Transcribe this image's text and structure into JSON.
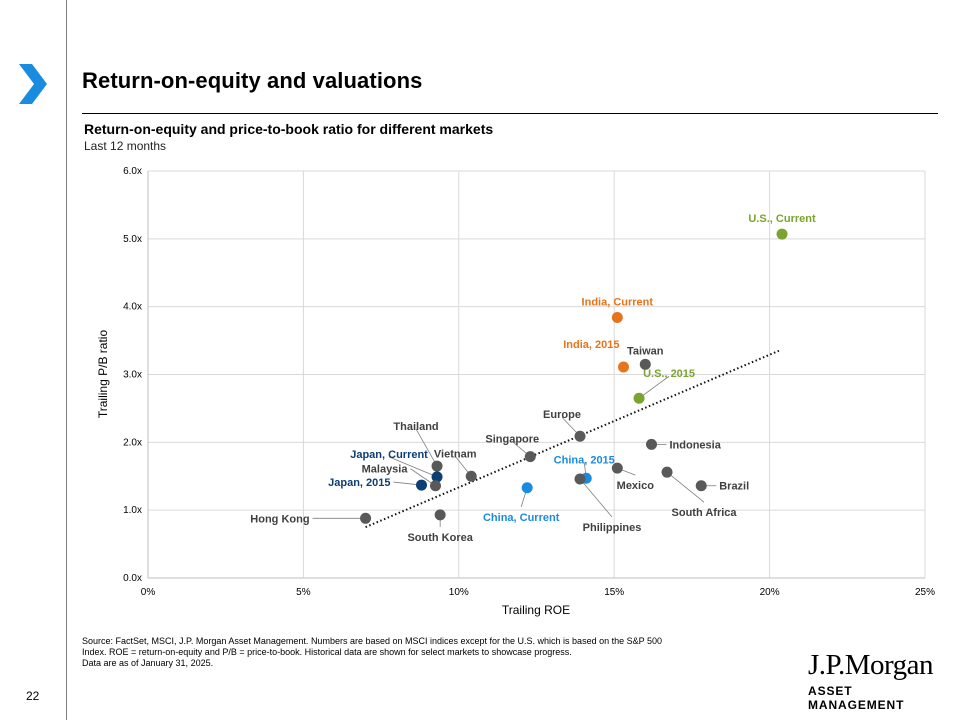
{
  "page": {
    "number": "22",
    "title": "Return-on-equity and valuations"
  },
  "chart_data": {
    "type": "scatter",
    "title": "Return-on-equity and price-to-book ratio for different markets",
    "subtitle": "Last 12 months",
    "xlabel": "Trailing ROE",
    "ylabel": "Trailing P/B ratio",
    "xlim": [
      0,
      25
    ],
    "ylim": [
      0,
      6
    ],
    "xticks": [
      0,
      5,
      10,
      15,
      20,
      25
    ],
    "yticks": [
      0,
      1,
      2,
      3,
      4,
      5,
      6
    ],
    "xtick_labels": [
      "0%",
      "5%",
      "10%",
      "15%",
      "20%",
      "25%"
    ],
    "ytick_labels": [
      "0.0x",
      "1.0x",
      "2.0x",
      "3.0x",
      "4.0x",
      "5.0x",
      "6.0x"
    ],
    "grid": true,
    "trendline": {
      "x": [
        7.0,
        20.3
      ],
      "y": [
        0.75,
        3.35
      ],
      "style": "dotted"
    },
    "colors": {
      "gray": "#595959",
      "usgreen": "#7aa32f",
      "indiaorange": "#e5741c",
      "japanblue": "#0d3e75",
      "chinablue": "#1a8ce0"
    },
    "points": [
      {
        "label": "U.S., Current",
        "x": 20.4,
        "y": 5.07,
        "color": "usgreen",
        "bold": true
      },
      {
        "label": "India, Current",
        "x": 15.1,
        "y": 3.84,
        "color": "indiaorange",
        "bold": true
      },
      {
        "label": "India, 2015",
        "x": 15.3,
        "y": 3.11,
        "color": "indiaorange",
        "bold": true
      },
      {
        "label": "Taiwan",
        "x": 16.0,
        "y": 3.15,
        "color": "gray",
        "bold": false
      },
      {
        "label": "U.S., 2015",
        "x": 15.8,
        "y": 2.65,
        "color": "usgreen",
        "bold": true
      },
      {
        "label": "Europe",
        "x": 13.9,
        "y": 2.09,
        "color": "gray",
        "bold": false
      },
      {
        "label": "Indonesia",
        "x": 16.2,
        "y": 1.97,
        "color": "gray",
        "bold": false
      },
      {
        "label": "Singapore",
        "x": 12.3,
        "y": 1.79,
        "color": "gray",
        "bold": false
      },
      {
        "label": "China, 2015",
        "x": 14.1,
        "y": 1.47,
        "color": "chinablue",
        "bold": true
      },
      {
        "label": "Philippines",
        "x": 13.9,
        "y": 1.46,
        "color": "gray",
        "bold": false
      },
      {
        "label": "Mexico",
        "x": 15.1,
        "y": 1.62,
        "color": "gray",
        "bold": false
      },
      {
        "label": "South Africa",
        "x": 16.7,
        "y": 1.56,
        "color": "gray",
        "bold": false
      },
      {
        "label": "Brazil",
        "x": 17.8,
        "y": 1.36,
        "color": "gray",
        "bold": false
      },
      {
        "label": "China, Current",
        "x": 12.2,
        "y": 1.33,
        "color": "chinablue",
        "bold": true
      },
      {
        "label": "Thailand",
        "x": 9.3,
        "y": 1.65,
        "color": "gray",
        "bold": false
      },
      {
        "label": "Vietnam",
        "x": 10.4,
        "y": 1.5,
        "color": "gray",
        "bold": false
      },
      {
        "label": "Japan, Current",
        "x": 9.3,
        "y": 1.49,
        "color": "japanblue",
        "bold": true
      },
      {
        "label": "Malaysia",
        "x": 9.25,
        "y": 1.36,
        "color": "gray",
        "bold": false
      },
      {
        "label": "Japan, 2015",
        "x": 8.8,
        "y": 1.37,
        "color": "japanblue",
        "bold": true
      },
      {
        "label": "Hong Kong",
        "x": 7.0,
        "y": 0.88,
        "color": "gray",
        "bold": false
      },
      {
        "label": "South Korea",
        "x": 9.4,
        "y": 0.93,
        "color": "gray",
        "bold": false
      }
    ]
  },
  "footnote": {
    "line1": "Source: FactSet, MSCI, J.P. Morgan Asset Management. Numbers are based on MSCI indices except for the U.S. which is based on the S&P 500",
    "line2": "Index. ROE = return-on-equity and P/B = price-to-book. Historical data are shown for select markets to showcase progress.",
    "line3": "Data are as of January 31, 2025."
  },
  "logo": {
    "name": "J.P.Morgan",
    "sub": "ASSET MANAGEMENT"
  }
}
